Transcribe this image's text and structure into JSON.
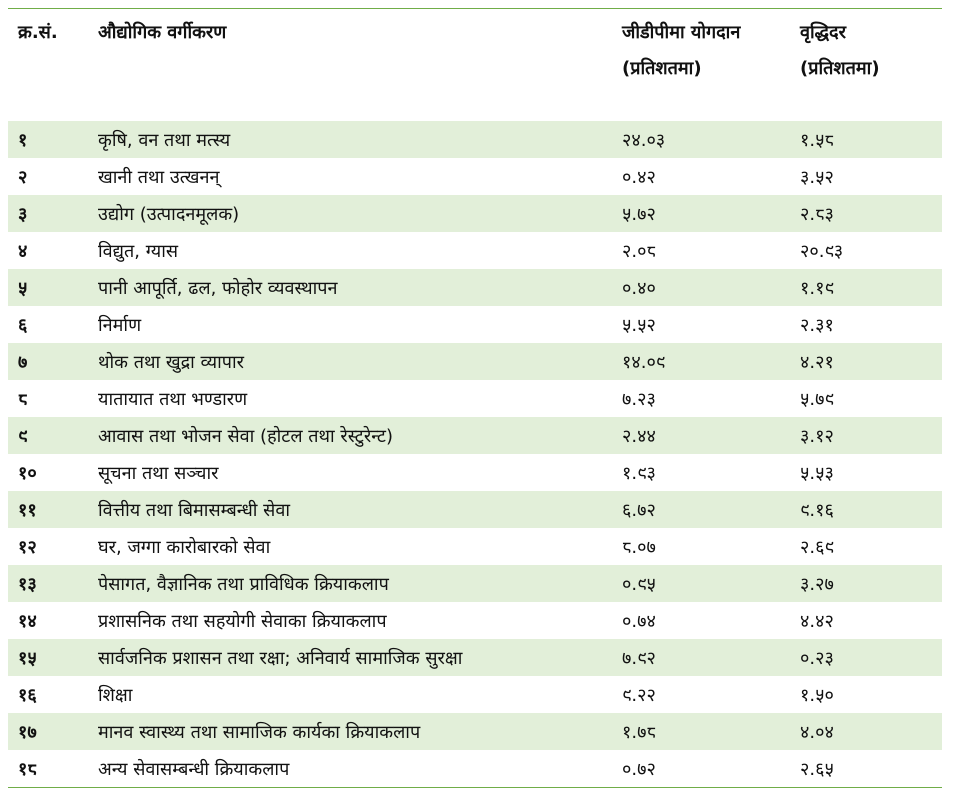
{
  "table": {
    "header": [
      "क्र.सं.",
      "औद्योगिक वर्गीकरण",
      "जीडीपीमा योगदान (प्रतिशतमा)",
      "वृद्धिदर (प्रतिशतमा)"
    ],
    "rows": [
      [
        "१",
        "कृषि, वन तथा मत्स्य",
        "२४.०३",
        "१.५८"
      ],
      [
        "२",
        "खानी तथा उत्खनन्",
        "०.४२",
        "३.५२"
      ],
      [
        "३",
        "उद्योग (उत्पादनमूलक)",
        "५.७२",
        "२.८३"
      ],
      [
        "४",
        "विद्युत, ग्यास",
        "२.०८",
        "२०.९३"
      ],
      [
        "५",
        "पानी आपूर्ति, ढल, फोहोर व्यवस्थापन",
        "०.४०",
        "१.१९"
      ],
      [
        "६",
        "निर्माण",
        "५.५२",
        "२.३१"
      ],
      [
        "७",
        "थोक तथा खुद्रा व्यापार",
        "१४.०९",
        "४.२१"
      ],
      [
        "८",
        "यातायात तथा भण्डारण",
        "७.२३",
        "५.७९"
      ],
      [
        "९",
        "आवास तथा भोजन सेवा (होटल तथा रेस्टुरेन्ट)",
        "२.४४",
        "३.१२"
      ],
      [
        "१०",
        "सूचना तथा सञ्चार",
        "१.९३",
        "५.५३"
      ],
      [
        "११",
        "वित्तीय तथा बिमासम्बन्धी सेवा",
        "६.७२",
        "९.१६"
      ],
      [
        "१२",
        "घर, जग्गा कारोबारको सेवा",
        "८.०७",
        "२.६९"
      ],
      [
        "१३",
        "पेसागत, वैज्ञानिक तथा प्राविधिक क्रियाकलाप",
        "०.९५",
        "३.२७"
      ],
      [
        "१४",
        "प्रशासनिक तथा सहयोगी सेवाका क्रियाकलाप",
        "०.७४",
        "४.४२"
      ],
      [
        "१५",
        "सार्वजनिक प्रशासन तथा रक्षा; अनिवार्य सामाजिक सुरक्षा",
        "७.९२",
        "०.२३"
      ],
      [
        "१६",
        "शिक्षा",
        "९.२२",
        "१.५०"
      ],
      [
        "१७",
        "मानव स्वास्थ्य तथा सामाजिक कार्यका क्रियाकलाप",
        "१.७८",
        "४.०४"
      ],
      [
        "१८",
        "अन्य सेवासम्बन्धी क्रियाकलाप",
        "०.७२",
        "२.६५"
      ]
    ]
  }
}
